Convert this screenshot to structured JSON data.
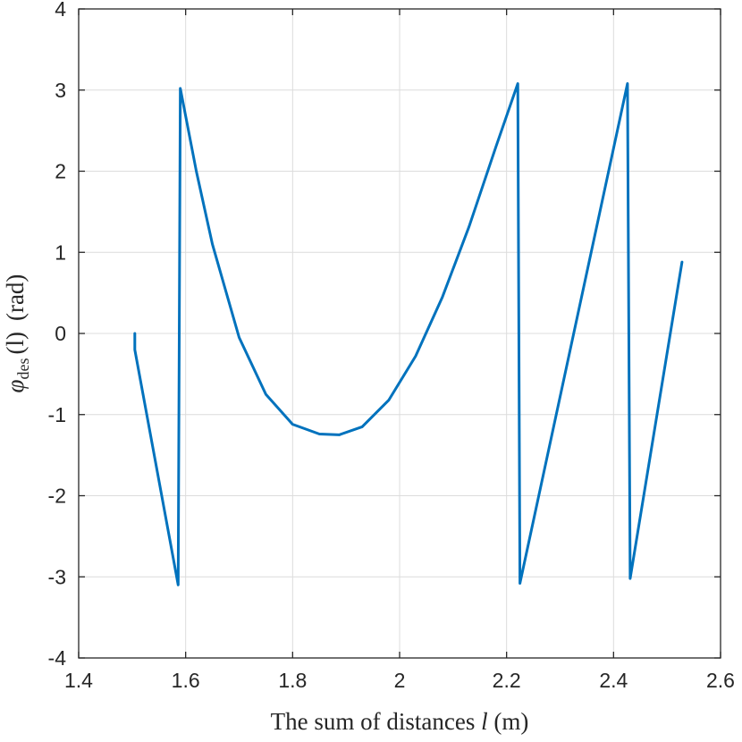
{
  "chart_data": {
    "type": "line",
    "xlabel_prefix": "The sum of distances ",
    "xlabel_var": "l",
    "xlabel_unit": " (m)",
    "ylabel_sym": "φ",
    "ylabel_sub": "des",
    "ylabel_arg": "(l)",
    "ylabel_unit": "(rad)",
    "xlim": [
      1.4,
      2.6
    ],
    "ylim": [
      -4,
      4
    ],
    "xticks": [
      1.4,
      1.6,
      1.8,
      2.0,
      2.2,
      2.4,
      2.6
    ],
    "xtick_labels": [
      "1.4",
      "1.6",
      "1.8",
      "2",
      "2.2",
      "2.4",
      "2.6"
    ],
    "yticks": [
      -4,
      -3,
      -2,
      -1,
      0,
      1,
      2,
      3,
      4
    ],
    "ytick_labels": [
      "-4",
      "-3",
      "-2",
      "-1",
      "0",
      "1",
      "2",
      "3",
      "4"
    ],
    "grid": true,
    "color": "#0072BD",
    "series": [
      {
        "x": [
          1.505,
          1.505,
          1.586,
          1.59,
          1.62,
          1.65,
          1.7,
          1.75,
          1.8,
          1.85,
          1.887,
          1.93,
          1.98,
          2.03,
          2.08,
          2.13,
          2.18,
          2.221,
          2.225,
          2.426,
          2.431,
          2.528
        ],
        "y": [
          0.0,
          -0.2,
          -3.1,
          3.02,
          2.0,
          1.1,
          -0.05,
          -0.75,
          -1.12,
          -1.24,
          -1.25,
          -1.15,
          -0.82,
          -0.28,
          0.45,
          1.32,
          2.3,
          3.08,
          -3.08,
          3.08,
          -3.02,
          0.88
        ]
      }
    ]
  }
}
